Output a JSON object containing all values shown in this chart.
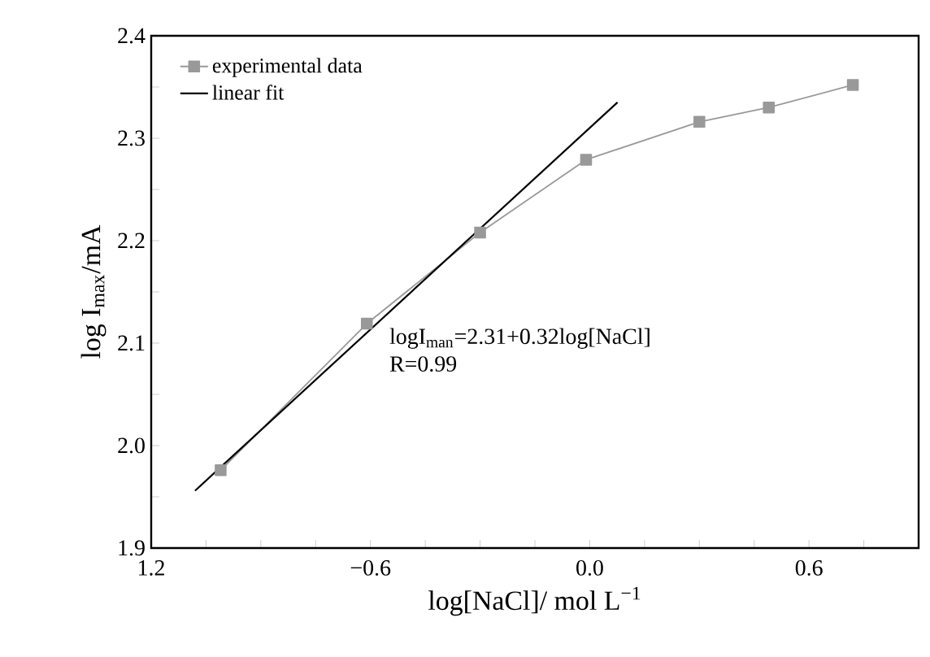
{
  "chart_data": {
    "type": "line",
    "xlabel": "log[NaCl]/ mol L$^{−1}$",
    "ylabel": "log I$_{max}$/mA",
    "series": [
      {
        "name": "experimental data",
        "color": "#999999",
        "marker": "square",
        "x": [
          -1.01,
          -0.61,
          -0.3,
          -0.01,
          0.3,
          0.49,
          0.72
        ],
        "values": [
          1.976,
          2.119,
          2.208,
          2.279,
          2.316,
          2.33,
          2.352
        ]
      },
      {
        "name": "linear fit",
        "color": "#000000",
        "marker": "none",
        "x": [
          -1.08,
          0.076
        ],
        "values": [
          1.956,
          2.335
        ]
      }
    ],
    "annotations": [
      "logI$_{man}$=2.31+0.32log[NaCl]",
      "R=0.99"
    ],
    "xlim": [
      -1.2,
      0.9
    ],
    "ylim": [
      1.9,
      2.4
    ],
    "xticks": [
      {
        "value": -1.2,
        "label": "1.2"
      },
      {
        "value": -1.05,
        "label": null
      },
      {
        "value": -0.9,
        "label": null
      },
      {
        "value": -0.75,
        "label": null
      },
      {
        "value": -0.6,
        "label": "−0.6"
      },
      {
        "value": -0.45,
        "label": null
      },
      {
        "value": -0.3,
        "label": null
      },
      {
        "value": -0.15,
        "label": null
      },
      {
        "value": 0,
        "label": "0.0"
      },
      {
        "value": 0.15,
        "label": null
      },
      {
        "value": 0.3,
        "label": null
      },
      {
        "value": 0.45,
        "label": null
      },
      0.6,
      {
        "value": 0.75,
        "label": null
      }
    ],
    "yticks": [
      1.9,
      {
        "value": 1.95,
        "label": null
      },
      {
        "value": 2.0,
        "label": "2.0"
      },
      {
        "value": 2.05,
        "label": null
      },
      2.1,
      {
        "value": 2.15,
        "label": null
      },
      2.2,
      {
        "value": 2.25,
        "label": null
      },
      2.3,
      {
        "value": 2.35,
        "label": null
      },
      2.4
    ],
    "grid": false,
    "legend": "top left"
  }
}
